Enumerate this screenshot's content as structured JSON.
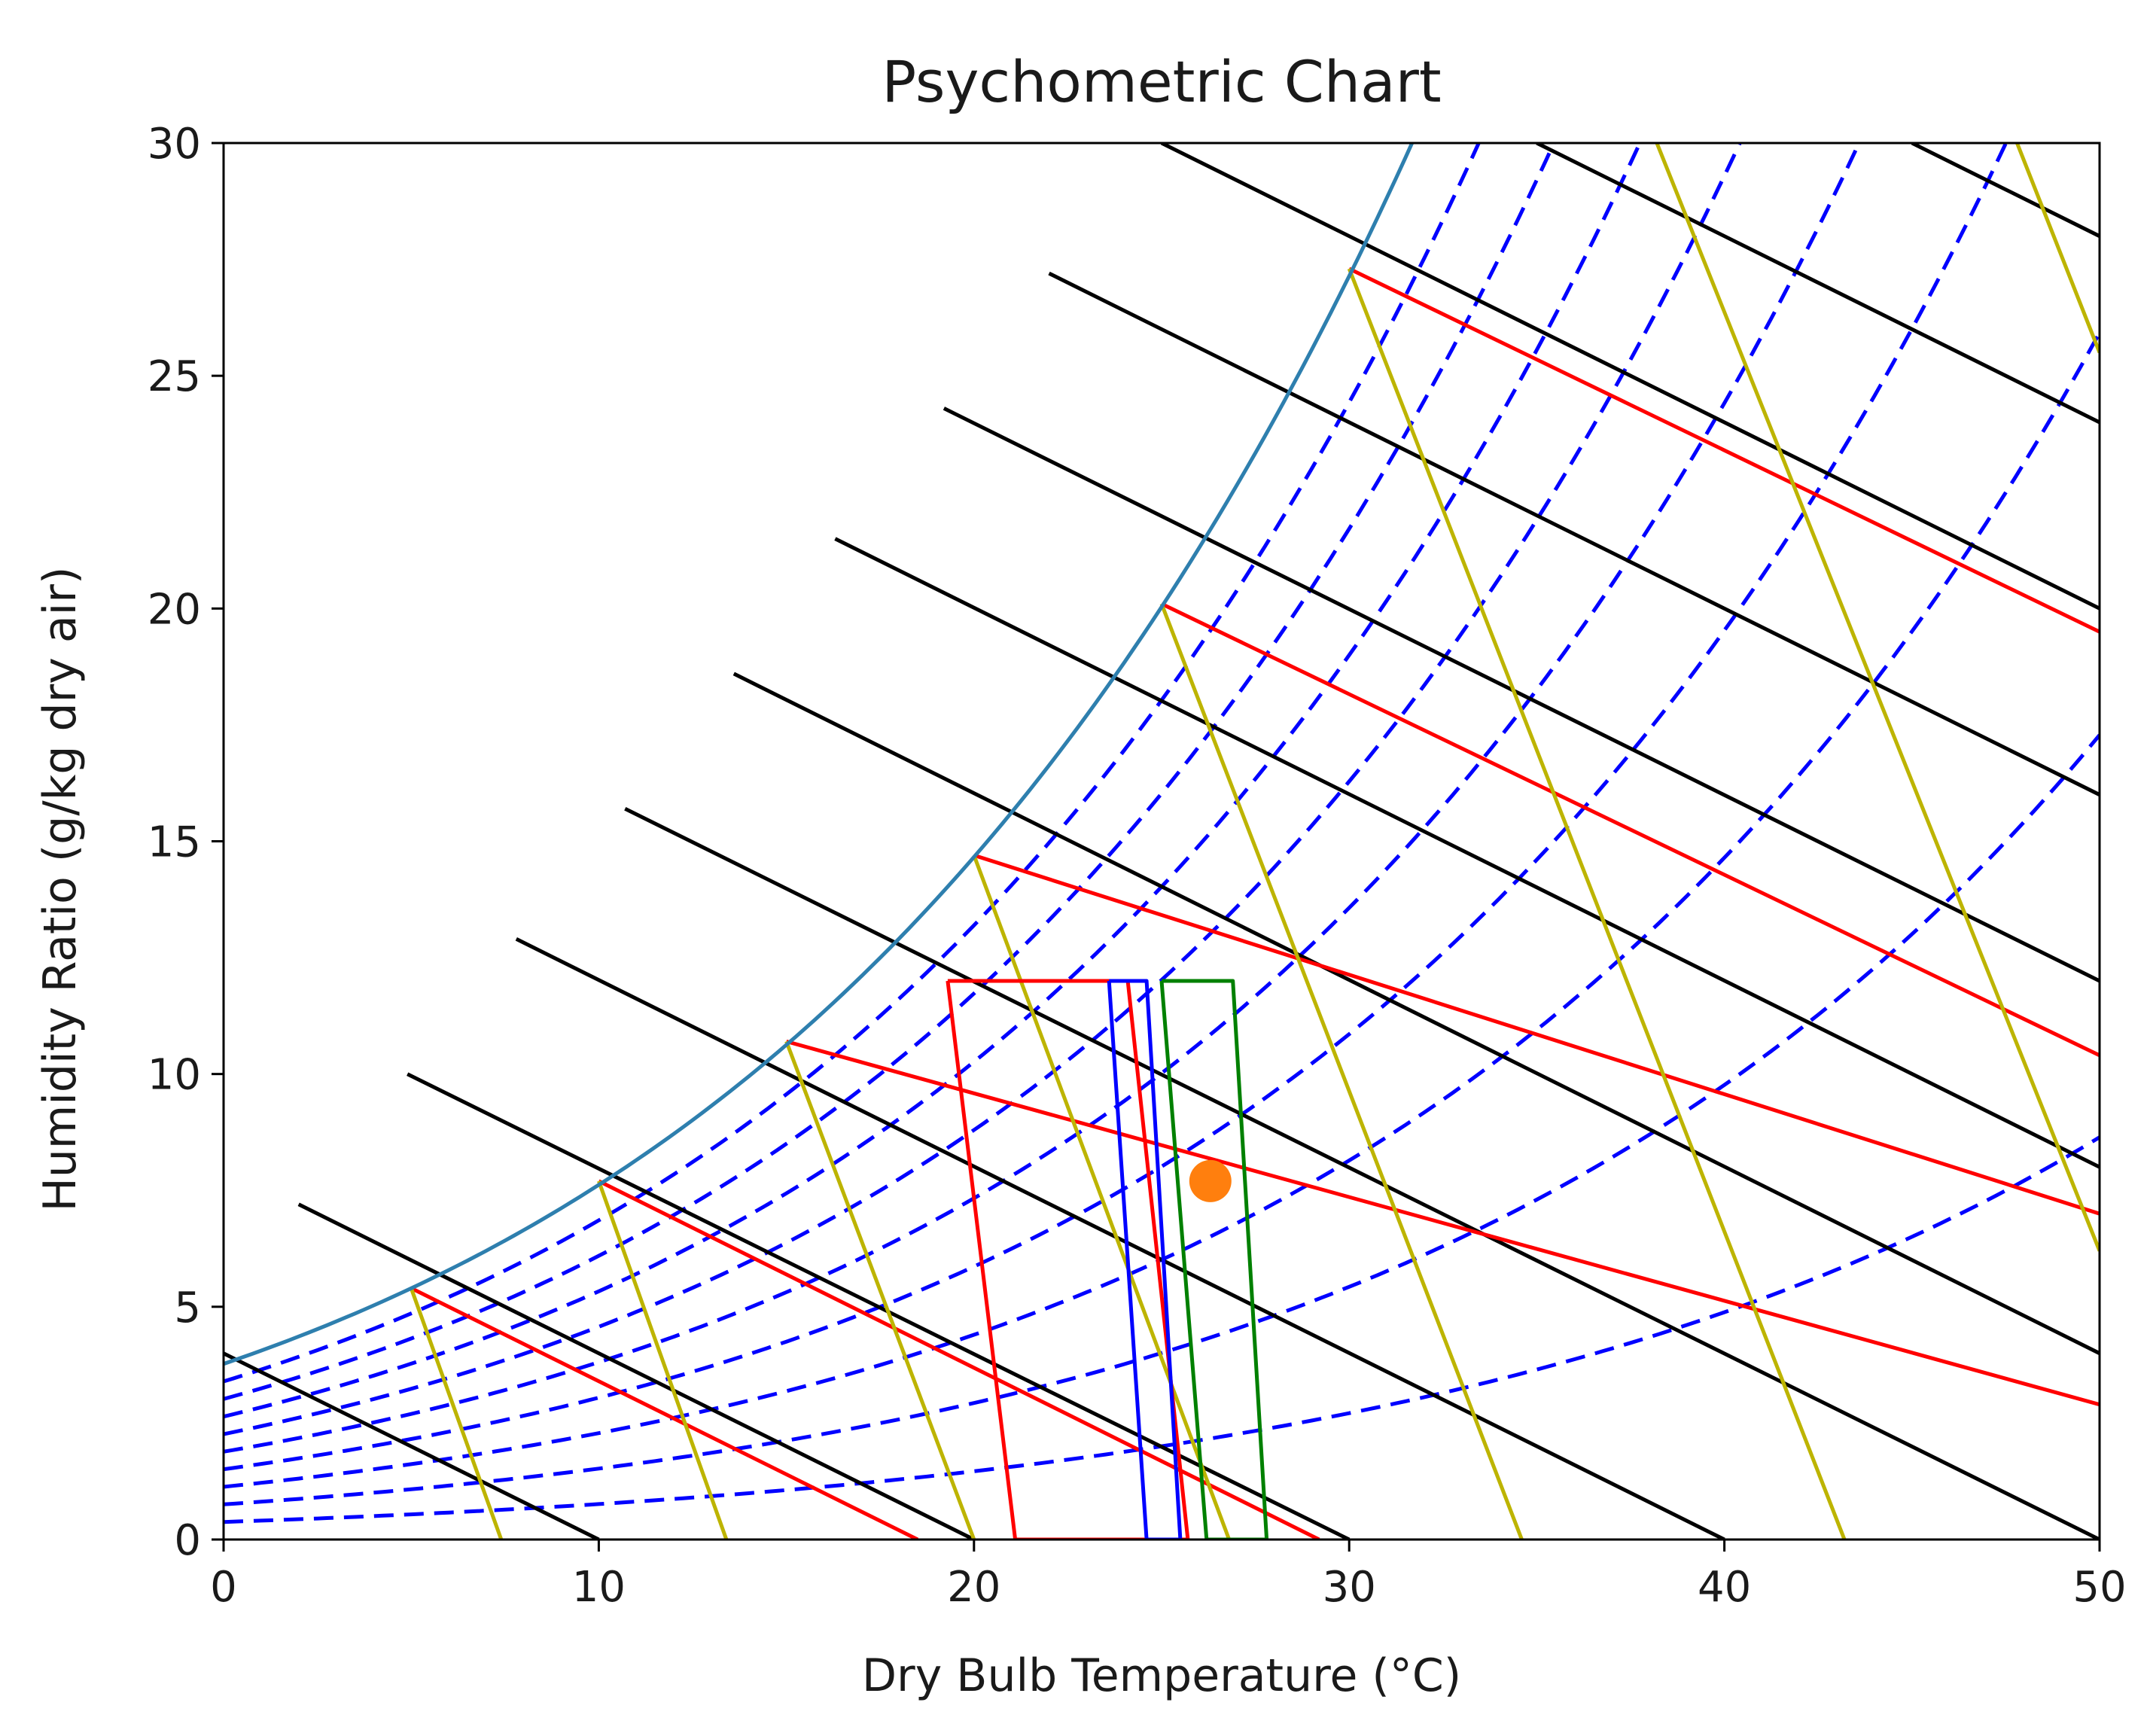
{
  "chart_data": {
    "type": "line",
    "title": "Psychometric Chart",
    "xlabel": "Dry Bulb Temperature (°C)",
    "ylabel": "Humidity Ratio (g/kg dry air)",
    "xlim": [
      0,
      50
    ],
    "ylim": [
      0,
      30
    ],
    "xticks": [
      "0",
      "10",
      "20",
      "30",
      "40",
      "50"
    ],
    "yticks": [
      "0",
      "5",
      "10",
      "15",
      "20",
      "25",
      "30"
    ],
    "grid": false,
    "legend": "none",
    "colors": {
      "saturation": "#2e7fae",
      "rh_curves": "#0000ff",
      "enthalpy": "#000000",
      "red_lines": "#ff0000",
      "yellow_lines": "#bdb400",
      "comfort_red": "#ff0000",
      "comfort_blue": "#0000ff",
      "comfort_green": "#008000",
      "point": "#ff7f0e"
    },
    "series": [
      {
        "name": "Saturation curve",
        "color": "#2e7fae",
        "style": "solid",
        "x": [
          0,
          5,
          10,
          15,
          20,
          25,
          30,
          32
        ],
        "y": [
          3.8,
          5.4,
          7.7,
          10.7,
          14.7,
          20.1,
          27.3,
          30.8
        ]
      },
      {
        "name": "Relative humidity curves (10%–90%)",
        "color": "#0000ff",
        "style": "dashed",
        "fractions": [
          0.1,
          0.2,
          0.3,
          0.4,
          0.5,
          0.6,
          0.7,
          0.8,
          0.9
        ],
        "note": "y = fraction × saturation humidity ratio"
      },
      {
        "name": "Constant enthalpy lines",
        "color": "#000000",
        "style": "solid",
        "lines": [
          {
            "x": [
              0,
              10
            ],
            "y": [
              4.0,
              0
            ]
          },
          {
            "x": [
              2.0,
              20
            ],
            "y": [
              7.2,
              0
            ]
          },
          {
            "x": [
              4.9,
              30
            ],
            "y": [
              10.0,
              0
            ]
          },
          {
            "x": [
              7.8,
              40
            ],
            "y": [
              12.9,
              0
            ]
          },
          {
            "x": [
              10.7,
              50
            ],
            "y": [
              15.7,
              0
            ]
          },
          {
            "x": [
              13.6,
              50
            ],
            "y": [
              18.6,
              4.0
            ]
          },
          {
            "x": [
              16.3,
              50
            ],
            "y": [
              21.5,
              8.0
            ]
          },
          {
            "x": [
              19.2,
              50
            ],
            "y": [
              24.3,
              12.0
            ]
          },
          {
            "x": [
              22.0,
              50
            ],
            "y": [
              27.2,
              16.0
            ]
          },
          {
            "x": [
              25.0,
              50
            ],
            "y": [
              30.0,
              20.0
            ]
          },
          {
            "x": [
              35.0,
              50
            ],
            "y": [
              30.0,
              24.0
            ]
          },
          {
            "x": [
              45.0,
              50
            ],
            "y": [
              30.0,
              28.0
            ]
          }
        ]
      },
      {
        "name": "Red lines",
        "color": "#ff0000",
        "style": "solid",
        "lines": [
          {
            "x": [
              5,
              18.5
            ],
            "y": [
              5.4,
              0
            ]
          },
          {
            "x": [
              10,
              29.2
            ],
            "y": [
              7.7,
              0
            ]
          },
          {
            "x": [
              15,
              50
            ],
            "y": [
              10.7,
              2.9
            ]
          },
          {
            "x": [
              20,
              50
            ],
            "y": [
              14.7,
              7.0
            ]
          },
          {
            "x": [
              25,
              50
            ],
            "y": [
              20.1,
              10.4
            ]
          },
          {
            "x": [
              30,
              50
            ],
            "y": [
              27.3,
              19.5
            ]
          }
        ]
      },
      {
        "name": "Yellow lines",
        "color": "#bdb400",
        "style": "solid",
        "lines": [
          {
            "x": [
              5,
              7.4
            ],
            "y": [
              5.4,
              0
            ]
          },
          {
            "x": [
              10,
              13.4
            ],
            "y": [
              7.7,
              0
            ]
          },
          {
            "x": [
              15,
              20.0
            ],
            "y": [
              10.7,
              0
            ]
          },
          {
            "x": [
              20,
              26.8
            ],
            "y": [
              14.7,
              0
            ]
          },
          {
            "x": [
              25,
              34.6
            ],
            "y": [
              20.1,
              0
            ]
          },
          {
            "x": [
              30,
              43.2
            ],
            "y": [
              27.3,
              0
            ]
          },
          {
            "x": [
              38.2,
              50
            ],
            "y": [
              30.0,
              6.2
            ]
          },
          {
            "x": [
              47.8,
              50
            ],
            "y": [
              30.0,
              25.5
            ]
          }
        ]
      },
      {
        "name": "Comfort zone (red)",
        "color": "#ff0000",
        "style": "solid",
        "x": [
          19.3,
          21.1,
          25.7,
          24.1,
          19.3
        ],
        "y": [
          12.0,
          0,
          0,
          12.0,
          12.0
        ]
      },
      {
        "name": "Comfort zone (blue)",
        "color": "#0000ff",
        "style": "solid",
        "x": [
          23.6,
          24.6,
          25.5,
          24.6,
          23.6
        ],
        "y": [
          12.0,
          0,
          0,
          12.0,
          12.0
        ]
      },
      {
        "name": "Comfort zone (green)",
        "color": "#008000",
        "style": "solid",
        "x": [
          25.0,
          26.2,
          27.8,
          26.9,
          25.0
        ],
        "y": [
          12.0,
          0,
          0,
          12.0,
          12.0
        ]
      },
      {
        "name": "Current state",
        "type": "scatter",
        "color": "#ff7f0e",
        "x": [
          26.3
        ],
        "y": [
          7.7
        ]
      }
    ]
  }
}
